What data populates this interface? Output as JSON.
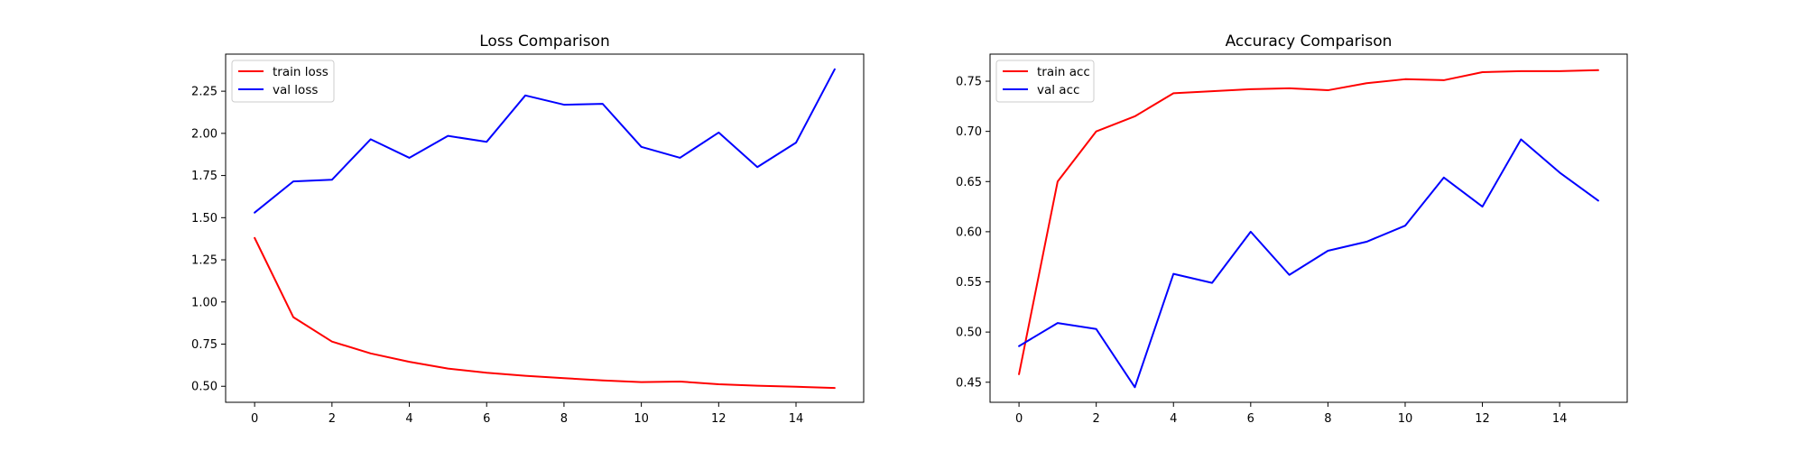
{
  "chart_data": [
    {
      "type": "line",
      "title": "Loss Comparison",
      "xlabel": "",
      "ylabel": "",
      "x": [
        0,
        1,
        2,
        3,
        4,
        5,
        6,
        7,
        8,
        9,
        10,
        11,
        12,
        13,
        14,
        15
      ],
      "xticks": [
        "0",
        "2",
        "4",
        "6",
        "8",
        "10",
        "12",
        "14"
      ],
      "yticks": [
        "0.50",
        "0.75",
        "1.00",
        "1.25",
        "1.50",
        "1.75",
        "2.00",
        "2.25"
      ],
      "xlim": [
        -0.75,
        15.75
      ],
      "ylim": [
        0.405,
        2.47
      ],
      "legend": "upper left",
      "grid": false,
      "series": [
        {
          "name": "train loss",
          "color": "#ff0000",
          "values": [
            1.38,
            0.91,
            0.765,
            0.695,
            0.645,
            0.605,
            0.58,
            0.562,
            0.548,
            0.535,
            0.525,
            0.528,
            0.512,
            0.503,
            0.497,
            0.49
          ]
        },
        {
          "name": "val loss",
          "color": "#0000ff",
          "values": [
            1.53,
            1.715,
            1.725,
            1.965,
            1.855,
            1.985,
            1.95,
            2.225,
            2.17,
            2.175,
            1.92,
            1.855,
            2.005,
            1.8,
            1.945,
            2.38
          ]
        }
      ]
    },
    {
      "type": "line",
      "title": "Accuracy Comparison",
      "xlabel": "",
      "ylabel": "",
      "x": [
        0,
        1,
        2,
        3,
        4,
        5,
        6,
        7,
        8,
        9,
        10,
        11,
        12,
        13,
        14,
        15
      ],
      "xticks": [
        "0",
        "2",
        "4",
        "6",
        "8",
        "10",
        "12",
        "14"
      ],
      "yticks": [
        "0.45",
        "0.50",
        "0.55",
        "0.60",
        "0.65",
        "0.70",
        "0.75"
      ],
      "xlim": [
        -0.75,
        15.75
      ],
      "ylim": [
        0.43,
        0.777
      ],
      "legend": "upper left",
      "grid": false,
      "series": [
        {
          "name": "train acc",
          "color": "#ff0000",
          "values": [
            0.458,
            0.65,
            0.7,
            0.715,
            0.738,
            0.74,
            0.742,
            0.743,
            0.741,
            0.748,
            0.752,
            0.751,
            0.759,
            0.76,
            0.76,
            0.761
          ]
        },
        {
          "name": "val acc",
          "color": "#0000ff",
          "values": [
            0.486,
            0.509,
            0.503,
            0.445,
            0.558,
            0.549,
            0.6,
            0.557,
            0.581,
            0.59,
            0.606,
            0.654,
            0.625,
            0.692,
            0.659,
            0.631
          ]
        }
      ]
    }
  ]
}
